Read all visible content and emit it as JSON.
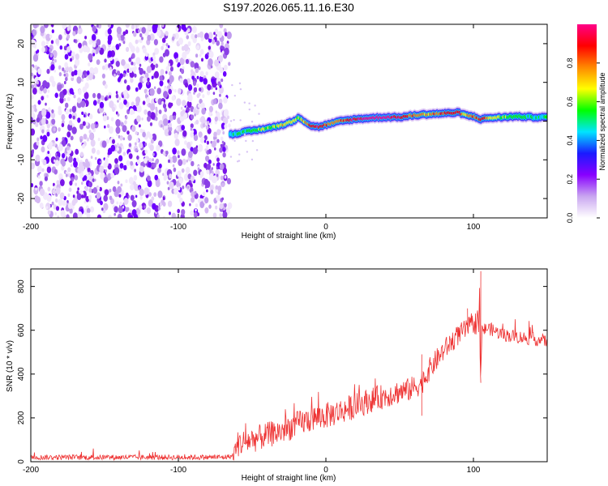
{
  "title": "S197.2026.065.11.16.E30",
  "chart_data": [
    {
      "type": "heatmap",
      "name": "spectrogram",
      "xlabel": "Height of straight line (km)",
      "ylabel": "Frequency (Hz)",
      "xlim": [
        -200,
        150
      ],
      "ylim": [
        -25,
        25
      ],
      "xticks": [
        -200,
        -100,
        0,
        100
      ],
      "yticks": [
        -20,
        -10,
        0,
        10,
        20
      ],
      "noise_region_x": [
        -200,
        -65
      ],
      "ridge": {
        "x": [
          -65,
          -55,
          -45,
          -35,
          -28,
          -22,
          -18,
          -14,
          -10,
          -5,
          0,
          5,
          10,
          20,
          30,
          40,
          50,
          60,
          70,
          80,
          90,
          95,
          100,
          105,
          110,
          120,
          130,
          140,
          150
        ],
        "freq": [
          -3.5,
          -2.8,
          -2.2,
          -1.5,
          -0.8,
          0.0,
          1.0,
          -0.2,
          -1.2,
          -1.5,
          -1.0,
          -0.5,
          0.0,
          0.5,
          0.8,
          1.0,
          1.0,
          1.5,
          1.8,
          2.0,
          2.2,
          1.5,
          1.2,
          0.5,
          0.8,
          1.0,
          1.2,
          1.0,
          1.0
        ],
        "amplitude": [
          0.45,
          0.55,
          0.6,
          0.65,
          0.7,
          0.65,
          0.6,
          0.75,
          0.85,
          0.9,
          0.8,
          0.75,
          0.8,
          0.95,
          0.98,
          1.0,
          0.95,
          0.8,
          0.75,
          0.85,
          0.9,
          0.7,
          0.8,
          0.9,
          0.7,
          0.6,
          0.55,
          0.5,
          0.5
        ]
      },
      "colorbar": {
        "label": "Normalized spectral amplitude",
        "ticks": [
          "0.0",
          "0.2",
          "0.4",
          "0.6",
          "0.8"
        ],
        "tick_values": [
          0.0,
          0.2,
          0.4,
          0.6,
          0.8
        ],
        "range": [
          0,
          1
        ],
        "colormap": [
          "#ffffff",
          "#c9a6f0",
          "#8800ff",
          "#1a1aff",
          "#00e5ff",
          "#00ff00",
          "#ffff00",
          "#ff8800",
          "#ff0000",
          "#ff0088"
        ]
      }
    },
    {
      "type": "line",
      "name": "snr",
      "xlabel": "Height of straight line (km)",
      "ylabel": "SNR (10 * v/v)",
      "xlim": [
        -200,
        150
      ],
      "ylim": [
        0,
        880
      ],
      "xticks": [
        -200,
        -100,
        0,
        100
      ],
      "yticks": [
        0,
        200,
        400,
        600,
        800
      ],
      "color": "#ee3333",
      "trend": {
        "x": [
          -200,
          -150,
          -100,
          -70,
          -63,
          -60,
          -50,
          -40,
          -30,
          -20,
          -10,
          0,
          10,
          20,
          30,
          40,
          50,
          55,
          60,
          65,
          70,
          80,
          90,
          100,
          104,
          105,
          106,
          110,
          120,
          130,
          140,
          150
        ],
        "y": [
          20,
          20,
          20,
          20,
          25,
          80,
          100,
          120,
          140,
          170,
          195,
          210,
          230,
          255,
          280,
          300,
          320,
          325,
          340,
          360,
          420,
          510,
          580,
          630,
          640,
          380,
          600,
          610,
          580,
          570,
          560,
          550
        ]
      },
      "noise_amplitude": {
        "x": [
          -200,
          -64,
          -60,
          0,
          60,
          100,
          104,
          106,
          150
        ],
        "amp": [
          12,
          12,
          60,
          60,
          55,
          45,
          70,
          30,
          30
        ]
      },
      "spikes": [
        {
          "x": 65,
          "y": 210
        },
        {
          "x": 65,
          "y": 490
        },
        {
          "x": 96,
          "y": 700
        },
        {
          "x": 105,
          "y": 870
        },
        {
          "x": 105,
          "y": 360
        }
      ]
    }
  ]
}
